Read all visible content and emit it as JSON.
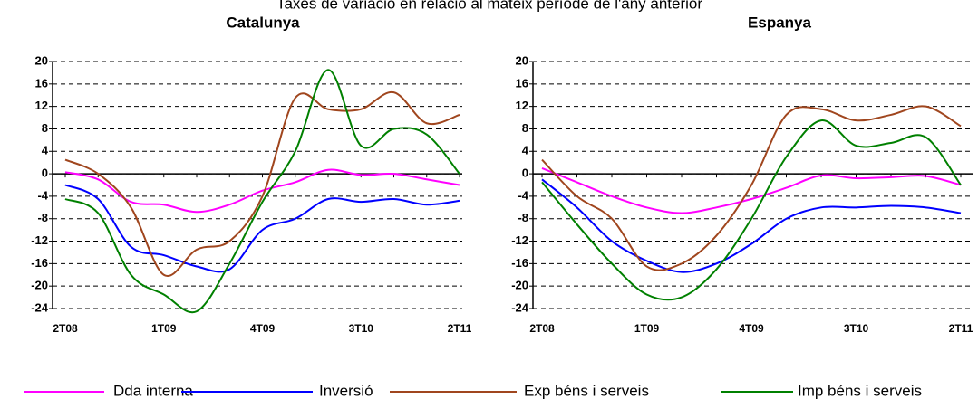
{
  "title": "Taxes de variació en relació al mateix període de l'any anterior",
  "chart_data": [
    {
      "type": "line",
      "title": "Catalunya",
      "categories": [
        "2T08",
        null,
        null,
        "1T09",
        null,
        null,
        "4T09",
        null,
        null,
        "3T10",
        null,
        null,
        "2T11"
      ],
      "ylim": [
        -24,
        20
      ],
      "yticks": [
        -24,
        -20,
        -16,
        -12,
        -8,
        -4,
        0,
        4,
        8,
        12,
        16,
        20
      ],
      "grid": true,
      "series": [
        {
          "name": "Dda interna",
          "color": "#ff00ff",
          "values": [
            0.3,
            -1,
            -5,
            -5.5,
            -6.8,
            -5.5,
            -3,
            -1.5,
            0.7,
            -0.2,
            0,
            -1,
            -2
          ]
        },
        {
          "name": "Inversió",
          "color": "#0000ff",
          "values": [
            -2,
            -4.5,
            -13,
            -14.5,
            -16.5,
            -17,
            -10,
            -8,
            -4.5,
            -5,
            -4.5,
            -5.5,
            -4.8
          ]
        },
        {
          "name": "Exp béns i serveis",
          "color": "#a0461e",
          "values": [
            2.5,
            0,
            -6,
            -18,
            -13.5,
            -12,
            -4,
            13.5,
            11.5,
            11.5,
            14.5,
            9,
            10.5
          ]
        },
        {
          "name": "Imp béns i serveis",
          "color": "#008000",
          "values": [
            -4.5,
            -7,
            -18,
            -21.5,
            -24.5,
            -16,
            -5,
            4,
            18.5,
            5,
            8,
            7,
            0
          ]
        }
      ]
    },
    {
      "type": "line",
      "title": "Espanya",
      "categories": [
        "2T08",
        null,
        null,
        "1T09",
        null,
        null,
        "4T09",
        null,
        null,
        "3T10",
        null,
        null,
        "2T11"
      ],
      "ylim": [
        -24,
        20
      ],
      "yticks": [
        -24,
        -20,
        -16,
        -12,
        -8,
        -4,
        0,
        4,
        8,
        12,
        16,
        20
      ],
      "grid": true,
      "series": [
        {
          "name": "Dda interna",
          "color": "#ff00ff",
          "values": [
            1,
            -1.5,
            -4,
            -6,
            -7,
            -6,
            -4.5,
            -2.5,
            -0.3,
            -0.8,
            -0.6,
            -0.4,
            -2
          ]
        },
        {
          "name": "Inversió",
          "color": "#0000ff",
          "values": [
            -1,
            -6,
            -12,
            -15.5,
            -17.5,
            -16,
            -12.5,
            -8,
            -6,
            -6,
            -5.7,
            -6,
            -7
          ]
        },
        {
          "name": "Exp béns i serveis",
          "color": "#a0461e",
          "values": [
            2.5,
            -4,
            -8,
            -16.5,
            -16,
            -11,
            -2,
            10.5,
            11.5,
            9.5,
            10.5,
            12,
            8.5
          ]
        },
        {
          "name": "Imp béns i serveis",
          "color": "#008000",
          "values": [
            -1.5,
            -9,
            -16,
            -21.5,
            -22,
            -17,
            -8,
            3,
            9.5,
            5,
            5.5,
            6.5,
            -2
          ]
        }
      ]
    }
  ]
}
